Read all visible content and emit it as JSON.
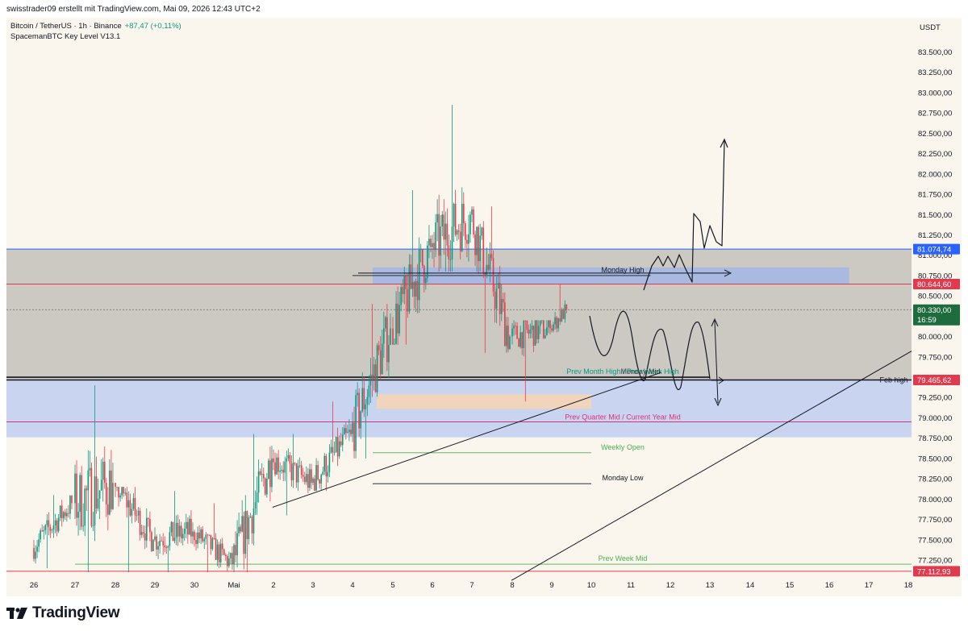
{
  "header": {
    "credit": "swisstrader09 erstellt mit TradingView.com, Mai 09, 2026 12:43 UTC+2",
    "symbol": "Bitcoin / TetherUS · 1h · Binance",
    "change": "+87,47 (+0,11%)",
    "indicator": "SpacemanBTC Key Level V13.1"
  },
  "currency": "USDT",
  "brand": {
    "name": "TradingView",
    "logo_icon": "tradingview-logo-icon"
  },
  "colors": {
    "up": "#089981",
    "down": "#f23645",
    "background": "#faf6ee",
    "gray_zone": "#ccc8c2",
    "blue_zone": "#c9d5f0",
    "blue_line": "#2962ff",
    "red_line": "#e03a4e",
    "green_level": "#4caf50",
    "pink_text": "#d6327a"
  },
  "chart_data": {
    "type": "candlestick",
    "timeframe": "1h",
    "yticks": [
      "83.500,00",
      "83.250,00",
      "83.000,00",
      "82.750,00",
      "82.500,00",
      "82.250,00",
      "82.000,00",
      "81.750,00",
      "81.500,00",
      "81.250,00",
      "81.000,00",
      "80.750,00",
      "80.500,00",
      "80.250,00",
      "80.000,00",
      "79.750,00",
      "79.500,00",
      "79.250,00",
      "79.000,00",
      "78.750,00",
      "78.500,00",
      "78.250,00",
      "78.000,00",
      "77.750,00",
      "77.500,00",
      "77.250,00"
    ],
    "yticks_values": [
      83500,
      83250,
      83000,
      82750,
      82500,
      82250,
      82000,
      81750,
      81500,
      81250,
      81000,
      80750,
      80500,
      80250,
      80000,
      79750,
      79500,
      79250,
      79000,
      78750,
      78500,
      78250,
      78000,
      77750,
      77500,
      77250
    ],
    "xticks": [
      "26",
      "27",
      "28",
      "29",
      "30",
      "Mai",
      "2",
      "3",
      "4",
      "5",
      "6",
      "7",
      "8",
      "9",
      "10",
      "11",
      "12",
      "13",
      "14",
      "15",
      "16",
      "17",
      "18"
    ],
    "price_tags": [
      {
        "label": "81.074,74",
        "value": 81074.74,
        "color": "#2962ff",
        "text_color": "#ffffff"
      },
      {
        "label": "80.644,60",
        "value": 80644.6,
        "color": "#e03a4e",
        "text_color": "#ffffff"
      },
      {
        "label": "80.330,00",
        "value": 80330,
        "countdown": "16:59",
        "color": "#1e6b3d",
        "text_color": "#ffffff"
      },
      {
        "label": "79.465,62",
        "value": 79465.62,
        "color": "#e03a4e",
        "text_color": "#ffffff"
      },
      {
        "label": "77.112,93",
        "value": 77112.93,
        "color": "#e03a4e",
        "text_color": "#ffffff"
      }
    ],
    "levels": [
      {
        "label": "Monday High",
        "value": 80750,
        "color": "#131722",
        "x_start": "4",
        "x_end": "11.5",
        "label_color": "#131722"
      },
      {
        "label": "Prev Month High / Prev Week High",
        "value": 79500,
        "color": "#131722",
        "x_start": "26",
        "x_end": "13",
        "label_color": "#089981",
        "overlap_label": "Monday Mid"
      },
      {
        "label": "Feb high",
        "value": 79465.62,
        "color": "#131722",
        "x_start": "26",
        "x_end": "18",
        "label_color": "#131722"
      },
      {
        "label": "Prev Quarter Mid / Current Year Mid",
        "value": 78950,
        "color": "#d6327a",
        "x_start": "26",
        "x_end": "18",
        "label_color": "#d6327a"
      },
      {
        "label": "Weekly Open",
        "value": 78570,
        "color": "#4caf50",
        "x_start": "4.5",
        "x_end": "10",
        "label_color": "#4caf50"
      },
      {
        "label": "Monday Low",
        "value": 78190,
        "color": "#131722",
        "x_start": "4.5",
        "x_end": "10",
        "label_color": "#131722"
      },
      {
        "label": "Prev Week Mid",
        "value": 77200,
        "color": "#4caf50",
        "x_start": "27",
        "x_end": "18",
        "label_color": "#4caf50"
      }
    ],
    "zones": [
      {
        "name": "gray-resistance-zone",
        "from": 79470,
        "to": 81080,
        "x_start": "26",
        "x_end": "18",
        "color": "#ccc8c2"
      },
      {
        "name": "blue-support-zone",
        "from": 78760,
        "to": 79470,
        "x_start": "26",
        "x_end": "18",
        "color": "#c9d5f0"
      },
      {
        "name": "monday-high-box",
        "from": 80650,
        "to": 80850,
        "x_start": "4.5",
        "x_end": "16.5",
        "color": "#9fb4e8"
      },
      {
        "name": "orange-box",
        "from": 79110,
        "to": 79290,
        "x_start": "4.6",
        "x_end": "10",
        "color": "#f0d4bc"
      }
    ],
    "candles": [
      {
        "day": "26",
        "close_start": 77400,
        "close_end": 77950,
        "low": 77150,
        "high": 78050
      },
      {
        "day": "27",
        "close_start": 77950,
        "close_end": 78200,
        "low": 77100,
        "high": 79400
      },
      {
        "day": "28",
        "close_start": 78200,
        "close_end": 77500,
        "low": 77100,
        "high": 78150
      },
      {
        "day": "29",
        "close_start": 77500,
        "close_end": 77600,
        "low": 77100,
        "high": 78100
      },
      {
        "day": "30",
        "close_start": 77600,
        "close_end": 77200,
        "low": 77100,
        "high": 77950
      },
      {
        "day": "Mai",
        "close_start": 77200,
        "close_end": 78500,
        "low": 77100,
        "high": 78800
      },
      {
        "day": "2",
        "close_start": 78500,
        "close_end": 78200,
        "low": 77800,
        "high": 78800
      },
      {
        "day": "3",
        "close_start": 78200,
        "close_end": 78800,
        "low": 78100,
        "high": 79200
      },
      {
        "day": "4",
        "close_start": 78800,
        "close_end": 80100,
        "low": 78500,
        "high": 80400
      },
      {
        "day": "5",
        "close_start": 80100,
        "close_end": 81100,
        "low": 79900,
        "high": 81800
      },
      {
        "day": "6",
        "close_start": 81100,
        "close_end": 81500,
        "low": 80800,
        "high": 82850
      },
      {
        "day": "7",
        "close_start": 81500,
        "close_end": 80000,
        "low": 79800,
        "high": 81600
      },
      {
        "day": "8",
        "close_start": 80000,
        "close_end": 80100,
        "low": 79200,
        "high": 80200
      },
      {
        "day": "9",
        "close_start": 80100,
        "close_end": 80330,
        "low": 80050,
        "high": 80640
      }
    ],
    "last_price": 80330,
    "annotations": [
      "ascending-trendline-short",
      "ascending-trendline-long",
      "drawn-bullish-path",
      "drawn-range-path",
      "drawn-arrows"
    ]
  }
}
